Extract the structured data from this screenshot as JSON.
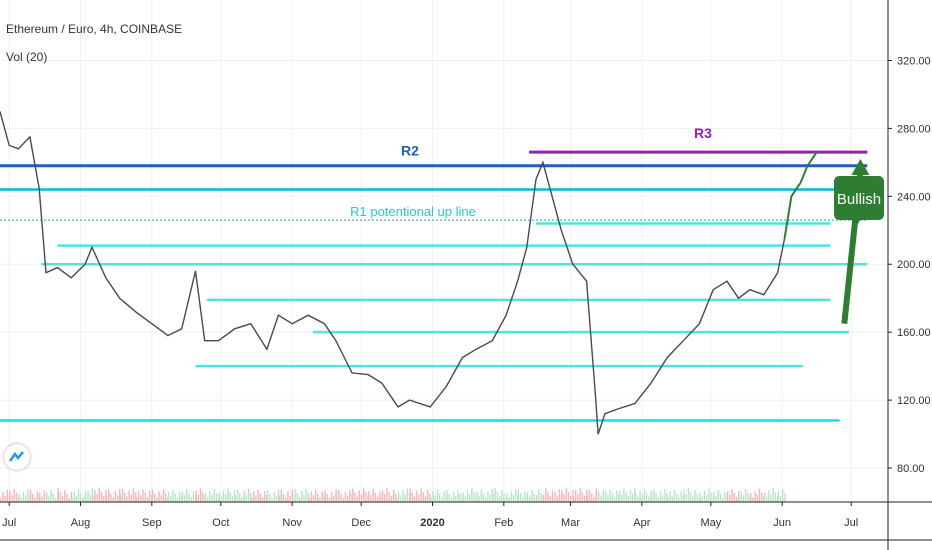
{
  "header": {
    "symbol": "Ethereum / Euro, 4h, COINBASE",
    "volume_label": "Vol (20)"
  },
  "chart_data": {
    "type": "line",
    "title": "Ethereum / Euro, 4h, COINBASE",
    "x": [
      "Jul",
      "Aug",
      "Sep",
      "Oct",
      "Nov",
      "Dec",
      "2020",
      "Feb",
      "Mar",
      "Apr",
      "May",
      "Jun",
      "Jul"
    ],
    "price_axis": {
      "ticks": [
        "320.00",
        "280.00",
        "240.00",
        "200.00",
        "160.00",
        "120.00",
        "80.00"
      ],
      "range": [
        60,
        345
      ]
    },
    "series": [
      {
        "values": [
          [
            "2019-06-27",
            290
          ],
          [
            "2019-07-01",
            270
          ],
          [
            "2019-07-05",
            268
          ],
          [
            "2019-07-10",
            275
          ],
          [
            "2019-07-14",
            245
          ],
          [
            "2019-07-17",
            195
          ],
          [
            "2019-07-22",
            198
          ],
          [
            "2019-07-28",
            192
          ],
          [
            "2019-08-03",
            200
          ],
          [
            "2019-08-06",
            210
          ],
          [
            "2019-08-12",
            192
          ],
          [
            "2019-08-18",
            180
          ],
          [
            "2019-08-25",
            172
          ],
          [
            "2019-09-01",
            165
          ],
          [
            "2019-09-08",
            158
          ],
          [
            "2019-09-14",
            162
          ],
          [
            "2019-09-20",
            196
          ],
          [
            "2019-09-24",
            155
          ],
          [
            "2019-09-30",
            155
          ],
          [
            "2019-10-07",
            162
          ],
          [
            "2019-10-14",
            165
          ],
          [
            "2019-10-21",
            150
          ],
          [
            "2019-10-26",
            170
          ],
          [
            "2019-11-01",
            165
          ],
          [
            "2019-11-08",
            170
          ],
          [
            "2019-11-15",
            165
          ],
          [
            "2019-11-20",
            155
          ],
          [
            "2019-11-27",
            136
          ],
          [
            "2019-12-04",
            135
          ],
          [
            "2019-12-10",
            130
          ],
          [
            "2019-12-17",
            116
          ],
          [
            "2019-12-22",
            120
          ],
          [
            "2019-12-31",
            116
          ],
          [
            "2020-01-07",
            128
          ],
          [
            "2020-01-14",
            145
          ],
          [
            "2020-01-20",
            150
          ],
          [
            "2020-01-27",
            155
          ],
          [
            "2020-02-02",
            170
          ],
          [
            "2020-02-07",
            190
          ],
          [
            "2020-02-11",
            210
          ],
          [
            "2020-02-15",
            250
          ],
          [
            "2020-02-18",
            260
          ],
          [
            "2020-02-22",
            240
          ],
          [
            "2020-02-26",
            220
          ],
          [
            "2020-03-02",
            200
          ],
          [
            "2020-03-08",
            190
          ],
          [
            "2020-03-12",
            120
          ],
          [
            "2020-03-13",
            100
          ],
          [
            "2020-03-16",
            112
          ],
          [
            "2020-03-22",
            115
          ],
          [
            "2020-03-29",
            118
          ],
          [
            "2020-04-05",
            130
          ],
          [
            "2020-04-12",
            145
          ],
          [
            "2020-04-19",
            155
          ],
          [
            "2020-04-26",
            165
          ],
          [
            "2020-05-02",
            185
          ],
          [
            "2020-05-08",
            190
          ],
          [
            "2020-05-13",
            180
          ],
          [
            "2020-05-18",
            185
          ],
          [
            "2020-05-24",
            182
          ],
          [
            "2020-05-30",
            195
          ],
          [
            "2020-06-02",
            215
          ]
        ]
      }
    ],
    "annotations": {
      "horizontal_lines": [
        {
          "value": 258,
          "from": "2019-06-27",
          "to": "2020-07-08",
          "color": "#1f5fbf"
        },
        {
          "value": 266,
          "from": "2020-02-12",
          "to": "2020-07-08",
          "color": "#8e24aa"
        },
        {
          "value": 244,
          "from": "2019-06-27",
          "to": "2020-07-08",
          "color": "#00bcd4"
        },
        {
          "value": 226,
          "from": "2019-06-27",
          "to": "2020-07-08",
          "color": "#26a69a",
          "dotted": true
        },
        {
          "value": 224,
          "from": "2020-02-15",
          "to": "2020-06-22",
          "color": "#4fe3e3"
        },
        {
          "value": 211,
          "from": "2019-07-22",
          "to": "2020-06-22",
          "color": "#4fe3e3"
        },
        {
          "value": 200,
          "from": "2019-07-15",
          "to": "2020-07-08",
          "color": "#4fe3e3"
        },
        {
          "value": 179,
          "from": "2019-09-25",
          "to": "2020-06-22",
          "color": "#4fe3e3"
        },
        {
          "value": 160,
          "from": "2019-11-10",
          "to": "2020-06-30",
          "color": "#4fe3e3"
        },
        {
          "value": 140,
          "from": "2019-09-20",
          "to": "2020-06-10",
          "color": "#4fe3e3"
        },
        {
          "value": 108,
          "from": "2019-06-27",
          "to": "2020-06-26",
          "color": "#00e5ee"
        }
      ],
      "labels": [
        {
          "text": "R2",
          "color": "#1f5fbf"
        },
        {
          "text": "R3",
          "color": "#8e24aa"
        },
        {
          "text": "R1 potentional up line",
          "color": "#26c6da"
        },
        {
          "text": "Bullish",
          "color": "#ffffff",
          "bg": "#2e7d32"
        }
      ],
      "projection": [
        [
          "2020-06-02",
          215
        ],
        [
          "2020-06-05",
          240
        ],
        [
          "2020-06-09",
          248
        ],
        [
          "2020-06-12",
          258
        ],
        [
          "2020-06-16",
          266
        ]
      ],
      "arrow": {
        "from": [
          "2020-06-28",
          165
        ],
        "to": [
          "2020-07-05",
          262
        ],
        "color": "#2e7d32"
      }
    },
    "grid": true
  }
}
